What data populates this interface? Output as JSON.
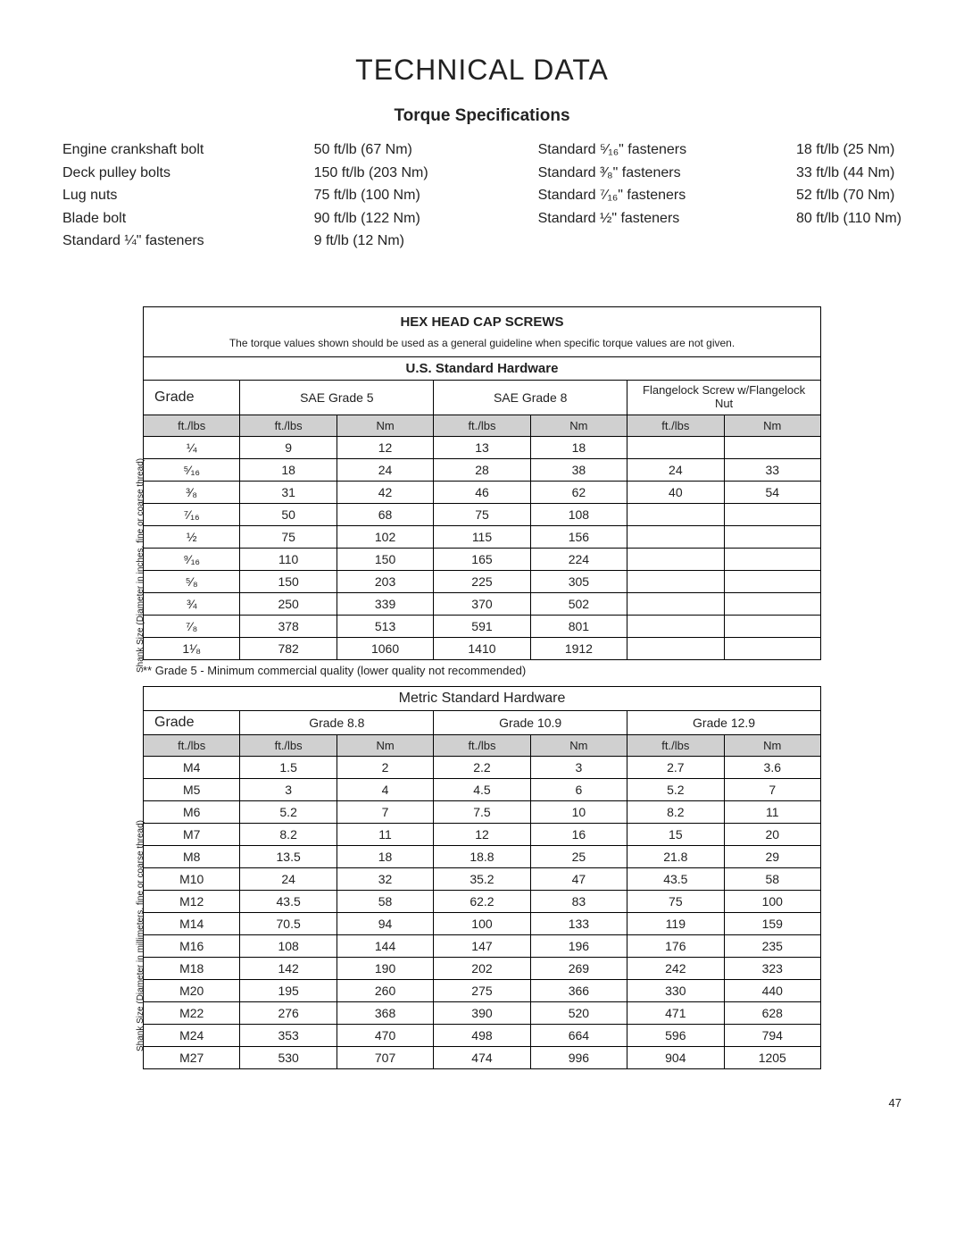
{
  "page_title": "TECHNICAL DATA",
  "sub_title": "Torque Specifications",
  "torque_specs": {
    "col1_labels": [
      "Engine crankshaft bolt",
      "Deck pulley bolts",
      "Lug nuts",
      "Blade bolt",
      "Standard ¼\" fasteners"
    ],
    "col1_values": [
      "50 ft/lb (67 Nm)",
      "150 ft/lb (203 Nm)",
      "75 ft/lb (100 Nm)",
      "90 ft/lb (122 Nm)",
      "9 ft/lb (12 Nm)"
    ],
    "col2_labels": [
      "Standard ⁵⁄₁₆\" fasteners",
      "Standard ³⁄₈\" fasteners",
      "Standard ⁷⁄₁₆\" fasteners",
      "Standard ½\" fasteners"
    ],
    "col2_values": [
      "18 ft/lb (25 Nm)",
      "33 ft/lb (44 Nm)",
      "52 ft/lb (70 Nm)",
      "80 ft/lb (110 Nm)"
    ]
  },
  "hex_title": "HEX HEAD CAP SCREWS",
  "hex_note": "The torque values shown should be used as a general guideline when specific torque values are not given.",
  "us_section": "U.S. Standard Hardware",
  "us_side_label": "Shank Size (Diameter in inches, fine or coarse thread)",
  "grade_label": "Grade",
  "us_grades": [
    "SAE Grade 5",
    "SAE Grade 8",
    "Flangelock Screw w/Flangelock Nut"
  ],
  "unit_ftlbs": "ft./lbs",
  "unit_nm": "Nm",
  "us_rows": [
    {
      "size": "¼",
      "v": [
        "9",
        "12",
        "13",
        "18",
        "",
        ""
      ]
    },
    {
      "size": "⁵⁄₁₆",
      "v": [
        "18",
        "24",
        "28",
        "38",
        "24",
        "33"
      ]
    },
    {
      "size": "³⁄₈",
      "v": [
        "31",
        "42",
        "46",
        "62",
        "40",
        "54"
      ]
    },
    {
      "size": "⁷⁄₁₆",
      "v": [
        "50",
        "68",
        "75",
        "108",
        "",
        ""
      ]
    },
    {
      "size": "½",
      "v": [
        "75",
        "102",
        "115",
        "156",
        "",
        ""
      ]
    },
    {
      "size": "⁹⁄₁₆",
      "v": [
        "110",
        "150",
        "165",
        "224",
        "",
        ""
      ]
    },
    {
      "size": "⁵⁄₈",
      "v": [
        "150",
        "203",
        "225",
        "305",
        "",
        ""
      ]
    },
    {
      "size": "¾",
      "v": [
        "250",
        "339",
        "370",
        "502",
        "",
        ""
      ]
    },
    {
      "size": "⁷⁄₈",
      "v": [
        "378",
        "513",
        "591",
        "801",
        "",
        ""
      ]
    },
    {
      "size": "1¹⁄₈",
      "v": [
        "782",
        "1060",
        "1410",
        "1912",
        "",
        ""
      ]
    }
  ],
  "us_footnote": "** Grade 5 - Minimum commercial quality (lower quality not recommended)",
  "metric_section": "Metric Standard Hardware",
  "metric_side_label": "Shank Size (Diameter in millimeters, fine or coarse thread)",
  "metric_grades": [
    "Grade 8.8",
    "Grade 10.9",
    "Grade 12.9"
  ],
  "metric_rows": [
    {
      "size": "M4",
      "v": [
        "1.5",
        "2",
        "2.2",
        "3",
        "2.7",
        "3.6"
      ]
    },
    {
      "size": "M5",
      "v": [
        "3",
        "4",
        "4.5",
        "6",
        "5.2",
        "7"
      ]
    },
    {
      "size": "M6",
      "v": [
        "5.2",
        "7",
        "7.5",
        "10",
        "8.2",
        "11"
      ]
    },
    {
      "size": "M7",
      "v": [
        "8.2",
        "11",
        "12",
        "16",
        "15",
        "20"
      ]
    },
    {
      "size": "M8",
      "v": [
        "13.5",
        "18",
        "18.8",
        "25",
        "21.8",
        "29"
      ]
    },
    {
      "size": "M10",
      "v": [
        "24",
        "32",
        "35.2",
        "47",
        "43.5",
        "58"
      ]
    },
    {
      "size": "M12",
      "v": [
        "43.5",
        "58",
        "62.2",
        "83",
        "75",
        "100"
      ]
    },
    {
      "size": "M14",
      "v": [
        "70.5",
        "94",
        "100",
        "133",
        "119",
        "159"
      ]
    },
    {
      "size": "M16",
      "v": [
        "108",
        "144",
        "147",
        "196",
        "176",
        "235"
      ]
    },
    {
      "size": "M18",
      "v": [
        "142",
        "190",
        "202",
        "269",
        "242",
        "323"
      ]
    },
    {
      "size": "M20",
      "v": [
        "195",
        "260",
        "275",
        "366",
        "330",
        "440"
      ]
    },
    {
      "size": "M22",
      "v": [
        "276",
        "368",
        "390",
        "520",
        "471",
        "628"
      ]
    },
    {
      "size": "M24",
      "v": [
        "353",
        "470",
        "498",
        "664",
        "596",
        "794"
      ]
    },
    {
      "size": "M27",
      "v": [
        "530",
        "707",
        "474",
        "996",
        "904",
        "1205"
      ]
    }
  ],
  "page_number": "47"
}
